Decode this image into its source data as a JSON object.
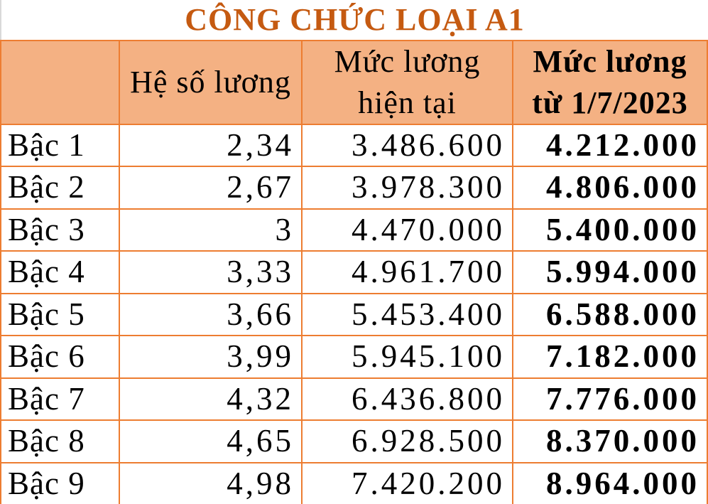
{
  "title": "CÔNG CHỨC LOẠI A1",
  "colors": {
    "title_text": "#C55A11",
    "header_bg": "#F4B183",
    "grid_border": "#ED7D31",
    "body_bg": "#FFFFFF",
    "body_text": "#000000"
  },
  "table": {
    "header": {
      "empty": "",
      "coefficient": "Hệ số lương",
      "current_line1": "Mức lương",
      "current_line2": "hiện tại",
      "new_line1": "Mức lương",
      "new_line2": "từ 1/7/2023"
    },
    "rows": [
      {
        "label": "Bậc 1",
        "coefficient": "2,34",
        "current": "3.486.600",
        "new": "4.212.000"
      },
      {
        "label": "Bậc 2",
        "coefficient": "2,67",
        "current": "3.978.300",
        "new": "4.806.000"
      },
      {
        "label": "Bậc 3",
        "coefficient": "3",
        "current": "4.470.000",
        "new": "5.400.000"
      },
      {
        "label": "Bậc 4",
        "coefficient": "3,33",
        "current": "4.961.700",
        "new": "5.994.000"
      },
      {
        "label": "Bậc 5",
        "coefficient": "3,66",
        "current": "5.453.400",
        "new": "6.588.000"
      },
      {
        "label": "Bậc 6",
        "coefficient": "3,99",
        "current": "5.945.100",
        "new": "7.182.000"
      },
      {
        "label": "Bậc 7",
        "coefficient": "4,32",
        "current": "6.436.800",
        "new": "7.776.000"
      },
      {
        "label": "Bậc 8",
        "coefficient": "4,65",
        "current": "6.928.500",
        "new": "8.370.000"
      },
      {
        "label": "Bậc 9",
        "coefficient": "4,98",
        "current": "7.420.200",
        "new": "8.964.000"
      }
    ]
  },
  "chart_data": {
    "type": "table",
    "title": "CÔNG CHỨC LOẠI A1",
    "columns": [
      "",
      "Hệ số lương",
      "Mức lương hiện tại",
      "Mức lương từ 1/7/2023"
    ],
    "rows": [
      [
        "Bậc 1",
        "2,34",
        "3.486.600",
        "4.212.000"
      ],
      [
        "Bậc 2",
        "2,67",
        "3.978.300",
        "4.806.000"
      ],
      [
        "Bậc 3",
        "3",
        "4.470.000",
        "5.400.000"
      ],
      [
        "Bậc 4",
        "3,33",
        "4.961.700",
        "5.994.000"
      ],
      [
        "Bậc 5",
        "3,66",
        "5.453.400",
        "6.588.000"
      ],
      [
        "Bậc 6",
        "3,99",
        "5.945.100",
        "7.182.000"
      ],
      [
        "Bậc 7",
        "4,32",
        "6.436.800",
        "7.776.000"
      ],
      [
        "Bậc 8",
        "4,65",
        "6.928.500",
        "8.370.000"
      ],
      [
        "Bậc 9",
        "4,98",
        "7.420.200",
        "8.964.000"
      ]
    ]
  }
}
